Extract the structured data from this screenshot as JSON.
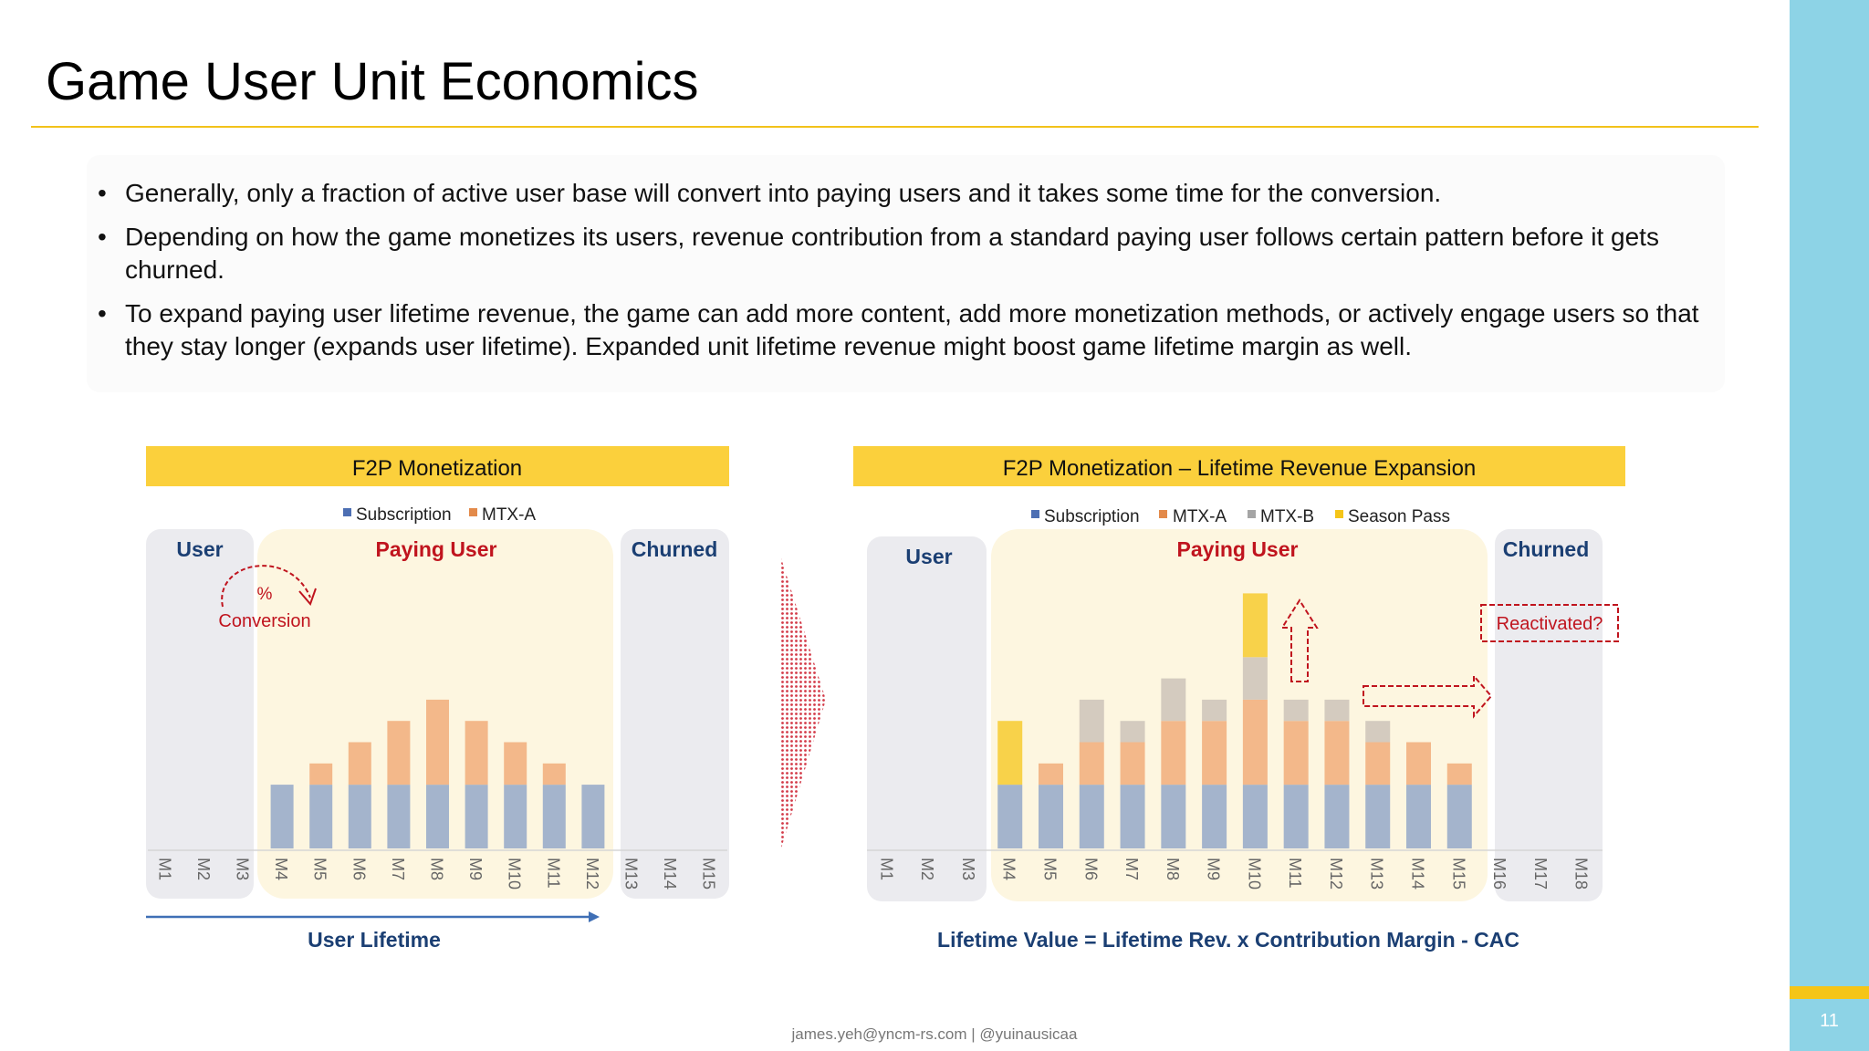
{
  "title": "Game User Unit Economics",
  "bullets": [
    "Generally, only a fraction of active user base will convert into paying users and it takes some time for the conversion.",
    "Depending on how the game monetizes its users, revenue contribution from a standard paying user follows certain pattern before it gets churned.",
    "To expand paying user lifetime revenue, the game can add more content, add more monetization methods, or actively engage users so that they stay longer (expands user lifetime). Expanded unit lifetime revenue might boost game lifetime margin as well."
  ],
  "colors": {
    "subscription": "#a4b4cc",
    "mtx_a": "#f3b88a",
    "mtx_b": "#d4cbbf",
    "season_pass": "#f8d24a",
    "header": "#fbd03c",
    "red": "#c0141e",
    "navy": "#1b3f73"
  },
  "chart_data": [
    {
      "type": "bar",
      "stacked": true,
      "title": "F2P Monetization",
      "categories": [
        "M1",
        "M2",
        "M3",
        "M4",
        "M5",
        "M6",
        "M7",
        "M8",
        "M9",
        "M10",
        "M11",
        "M12",
        "M13",
        "M14",
        "M15"
      ],
      "series": [
        {
          "name": "Subscription",
          "values": [
            0,
            0,
            0,
            3,
            3,
            3,
            3,
            3,
            3,
            3,
            3,
            3,
            0,
            0,
            0
          ]
        },
        {
          "name": "MTX-A",
          "values": [
            0,
            0,
            0,
            0,
            1,
            2,
            3,
            4,
            3,
            2,
            1,
            0,
            0,
            0,
            0
          ]
        }
      ],
      "ylim": [
        0,
        8
      ],
      "legend": [
        "Subscription",
        "MTX-A"
      ],
      "regions": {
        "user": "User",
        "paying": "Paying User",
        "churned": "Churned"
      },
      "annotations": {
        "percent": "%",
        "conversion": "Conversion",
        "lifetime": "User Lifetime"
      }
    },
    {
      "type": "bar",
      "stacked": true,
      "title": "F2P Monetization – Lifetime Revenue Expansion",
      "categories": [
        "M1",
        "M2",
        "M3",
        "M4",
        "M5",
        "M6",
        "M7",
        "M8",
        "M9",
        "M10",
        "M11",
        "M12",
        "M13",
        "M14",
        "M15",
        "M16",
        "M17",
        "M18"
      ],
      "series": [
        {
          "name": "Subscription",
          "values": [
            0,
            0,
            0,
            3,
            3,
            3,
            3,
            3,
            3,
            3,
            3,
            3,
            3,
            3,
            3,
            0,
            0,
            0
          ]
        },
        {
          "name": "MTX-A",
          "values": [
            0,
            0,
            0,
            0,
            1,
            2,
            2,
            3,
            3,
            4,
            3,
            3,
            2,
            2,
            1,
            0,
            0,
            0
          ]
        },
        {
          "name": "MTX-B",
          "values": [
            0,
            0,
            0,
            0,
            0,
            2,
            1,
            2,
            1,
            2,
            1,
            1,
            1,
            0,
            0,
            0,
            0,
            0
          ]
        },
        {
          "name": "Season Pass",
          "values": [
            0,
            0,
            0,
            3,
            0,
            0,
            0,
            0,
            0,
            3,
            0,
            0,
            0,
            0,
            0,
            0,
            0,
            0
          ]
        }
      ],
      "ylim": [
        0,
        12
      ],
      "legend": [
        "Subscription",
        "MTX-A",
        "MTX-B",
        "Season Pass"
      ],
      "regions": {
        "user": "User",
        "paying": "Paying User",
        "churned": "Churned"
      },
      "annotations": {
        "reactivated": "Reactivated?",
        "formula": "Lifetime Value = Lifetime Rev. x Contribution Margin - CAC"
      }
    }
  ],
  "footer": "james.yeh@yncm-rs.com | @yuinausicaa",
  "page_number": "11"
}
